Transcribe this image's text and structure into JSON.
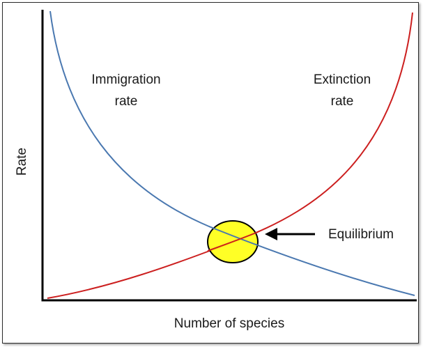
{
  "diagram": {
    "ylabel": "Rate",
    "xlabel": "Number of species",
    "immigration_label": [
      "Immigration",
      "rate"
    ],
    "extinction_label": [
      "Extinction",
      "rate"
    ],
    "equilibrium_label": "Equilibrium"
  },
  "colors": {
    "immigration": "#4a78b0",
    "extinction": "#cc1f1f",
    "equilibrium_fill": "#ffff00",
    "axis": "#000000"
  }
}
